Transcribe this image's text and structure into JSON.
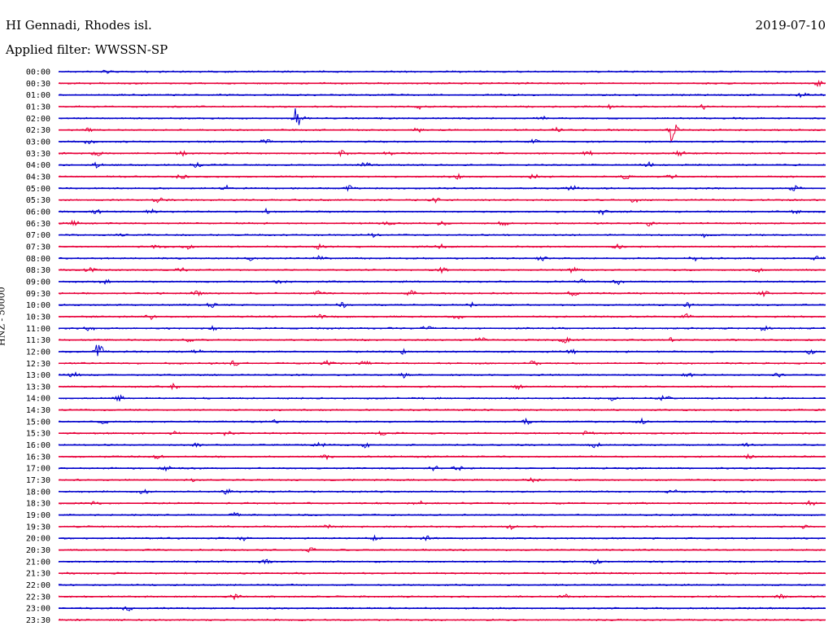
{
  "header": {
    "station": "HI Gennadi, Rhodes isl.",
    "filter": "Applied filter: WWSSN-SP",
    "date": "2019-07-10"
  },
  "chart_data": {
    "type": "line",
    "title": "HI Gennadi, Rhodes isl.",
    "subtitle": "Applied filter: WWSSN-SP",
    "ylabel": "HNZ - 50000",
    "xlabel": "",
    "colors": {
      "even_hour": "#0000cc",
      "half_hour": "#e8003a"
    },
    "traces": [
      {
        "label": "00:00",
        "events": [
          0.06
        ]
      },
      {
        "label": "00:30",
        "events": [
          0.99
        ]
      },
      {
        "label": "01:00",
        "events": [
          0.97
        ]
      },
      {
        "label": "01:30",
        "events": [
          0.47,
          0.72,
          0.84
        ]
      },
      {
        "label": "02:00",
        "events": [
          0.31,
          0.63
        ],
        "big": [
          0.31
        ]
      },
      {
        "label": "02:30",
        "events": [
          0.04,
          0.47,
          0.65,
          0.8
        ],
        "big": [
          0.8
        ]
      },
      {
        "label": "03:00",
        "events": [
          0.04,
          0.27,
          0.62
        ]
      },
      {
        "label": "03:30",
        "events": [
          0.05,
          0.16,
          0.37,
          0.43,
          0.69,
          0.81
        ]
      },
      {
        "label": "04:00",
        "events": [
          0.05,
          0.18,
          0.4,
          0.77
        ]
      },
      {
        "label": "04:30",
        "events": [
          0.16,
          0.52,
          0.62,
          0.74,
          0.8
        ]
      },
      {
        "label": "05:00",
        "events": [
          0.22,
          0.38,
          0.67,
          0.96
        ]
      },
      {
        "label": "05:30",
        "events": [
          0.13,
          0.49,
          0.75
        ]
      },
      {
        "label": "06:00",
        "events": [
          0.05,
          0.12,
          0.27,
          0.71,
          0.96
        ]
      },
      {
        "label": "06:30",
        "events": [
          0.02,
          0.43,
          0.5,
          0.58,
          0.77
        ]
      },
      {
        "label": "07:00",
        "events": [
          0.08,
          0.41,
          0.84
        ]
      },
      {
        "label": "07:30",
        "events": [
          0.13,
          0.17,
          0.34,
          0.5,
          0.73
        ]
      },
      {
        "label": "08:00",
        "events": [
          0.25,
          0.34,
          0.63,
          0.83,
          0.99
        ]
      },
      {
        "label": "08:30",
        "events": [
          0.04,
          0.16,
          0.5,
          0.67,
          0.91
        ]
      },
      {
        "label": "09:00",
        "events": [
          0.06,
          0.29,
          0.68,
          0.73
        ]
      },
      {
        "label": "09:30",
        "events": [
          0.18,
          0.34,
          0.46,
          0.67,
          0.92
        ]
      },
      {
        "label": "10:00",
        "events": [
          0.2,
          0.37,
          0.54,
          0.82
        ]
      },
      {
        "label": "10:30",
        "events": [
          0.12,
          0.34,
          0.52,
          0.82
        ]
      },
      {
        "label": "11:00",
        "events": [
          0.04,
          0.2,
          0.48,
          0.92
        ]
      },
      {
        "label": "11:30",
        "events": [
          0.17,
          0.55,
          0.66,
          0.8
        ]
      },
      {
        "label": "12:00",
        "events": [
          0.05,
          0.18,
          0.45,
          0.67,
          0.98
        ],
        "big": [
          0.05
        ]
      },
      {
        "label": "12:30",
        "events": [
          0.23,
          0.35,
          0.4,
          0.62
        ]
      },
      {
        "label": "13:00",
        "events": [
          0.02,
          0.45,
          0.82,
          0.94
        ]
      },
      {
        "label": "13:30",
        "events": [
          0.15,
          0.6
        ]
      },
      {
        "label": "14:00",
        "events": [
          0.08,
          0.72,
          0.79
        ]
      },
      {
        "label": "14:30",
        "events": []
      },
      {
        "label": "15:00",
        "events": [
          0.06,
          0.28,
          0.61,
          0.76
        ]
      },
      {
        "label": "15:30",
        "events": [
          0.15,
          0.22,
          0.42,
          0.69
        ]
      },
      {
        "label": "16:00",
        "events": [
          0.18,
          0.34,
          0.4,
          0.7,
          0.9
        ]
      },
      {
        "label": "16:30",
        "events": [
          0.13,
          0.35,
          0.9
        ]
      },
      {
        "label": "17:00",
        "events": [
          0.14,
          0.49,
          0.52
        ]
      },
      {
        "label": "17:30",
        "events": [
          0.17,
          0.62
        ]
      },
      {
        "label": "18:00",
        "events": [
          0.11,
          0.22,
          0.8
        ]
      },
      {
        "label": "18:30",
        "events": [
          0.05,
          0.47,
          0.98
        ]
      },
      {
        "label": "19:00",
        "events": [
          0.23
        ]
      },
      {
        "label": "19:30",
        "events": [
          0.35,
          0.59,
          0.97
        ]
      },
      {
        "label": "20:00",
        "events": [
          0.24,
          0.41,
          0.48
        ]
      },
      {
        "label": "20:30",
        "events": [
          0.33
        ]
      },
      {
        "label": "21:00",
        "events": [
          0.27,
          0.7
        ]
      },
      {
        "label": "21:30",
        "events": []
      },
      {
        "label": "22:00",
        "events": []
      },
      {
        "label": "22:30",
        "events": [
          0.23,
          0.66,
          0.94
        ]
      },
      {
        "label": "23:00",
        "events": [
          0.09
        ]
      },
      {
        "label": "23:30",
        "events": []
      }
    ]
  }
}
